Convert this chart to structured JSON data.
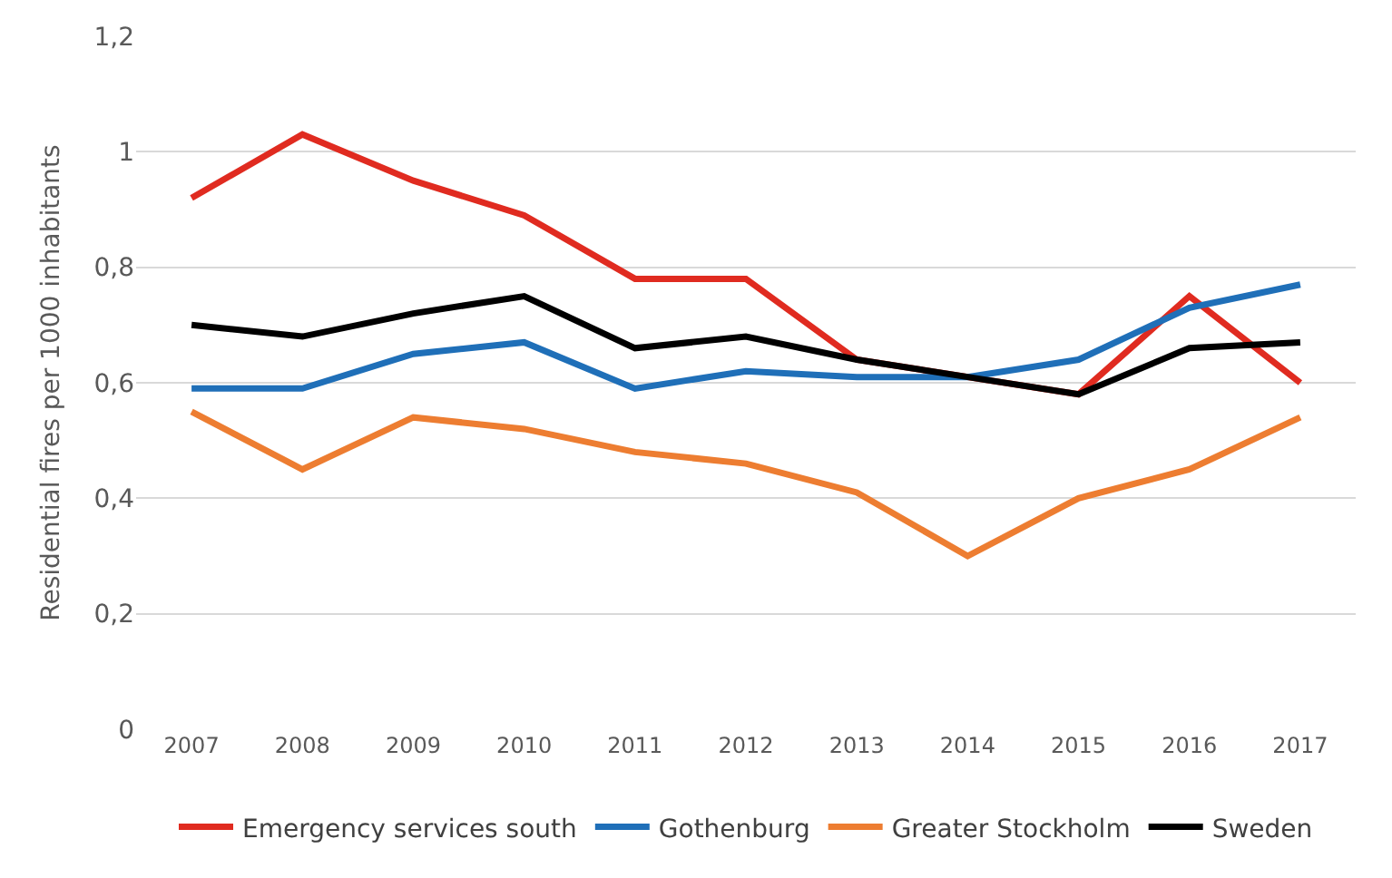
{
  "chart_data": {
    "type": "line",
    "ylabel": "Residential fires per 1000 inhabitants",
    "categories": [
      "2007",
      "2008",
      "2009",
      "2010",
      "2011",
      "2012",
      "2013",
      "2014",
      "2015",
      "2016",
      "2017"
    ],
    "series": [
      {
        "name": "Emergency services south",
        "color": "#e02b20",
        "values": [
          0.92,
          1.03,
          0.95,
          0.89,
          0.78,
          0.78,
          0.64,
          0.61,
          0.58,
          0.75,
          0.6
        ]
      },
      {
        "name": "Gothenburg",
        "color": "#1f6fb8",
        "values": [
          0.59,
          0.59,
          0.65,
          0.67,
          0.59,
          0.62,
          0.61,
          0.61,
          0.64,
          0.73,
          0.77
        ]
      },
      {
        "name": "Greater Stockholm",
        "color": "#ed7d31",
        "values": [
          0.55,
          0.45,
          0.54,
          0.52,
          0.48,
          0.46,
          0.41,
          0.3,
          0.4,
          0.45,
          0.54
        ]
      },
      {
        "name": "Sweden",
        "color": "#000000",
        "values": [
          0.7,
          0.68,
          0.72,
          0.75,
          0.66,
          0.68,
          0.64,
          0.61,
          0.58,
          0.66,
          0.67
        ]
      }
    ],
    "ylim": [
      0,
      1.2
    ],
    "yticks": [
      0,
      {
        "value": 0.2,
        "label": "0,2"
      },
      {
        "value": 0.4,
        "label": "0,4"
      },
      {
        "value": 0.6,
        "label": "0,6"
      },
      {
        "value": 0.8,
        "label": "0,8"
      },
      1,
      {
        "value": 1.2,
        "label": "1,2"
      }
    ],
    "grid": "y",
    "legend": "bottom",
    "marker": "none",
    "line_style": "solid"
  }
}
